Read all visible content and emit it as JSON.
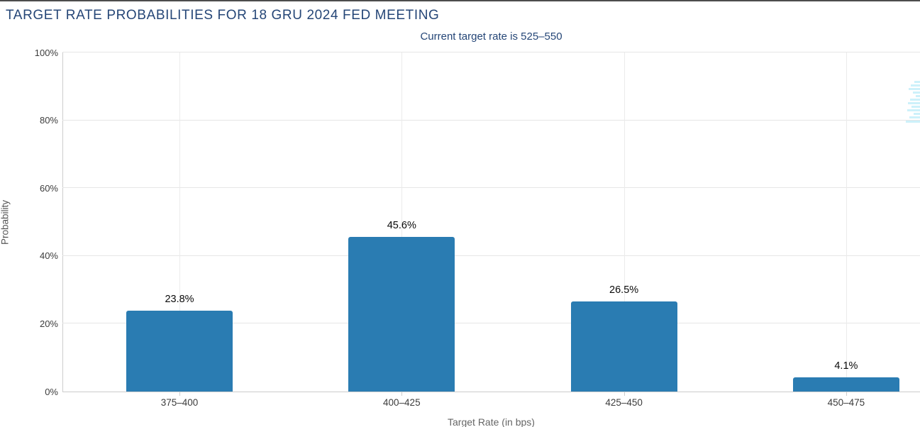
{
  "page": {
    "title": "TARGET RATE PROBABILITIES FOR 18 GRU 2024 FED MEETING",
    "subtitle": "Current target rate is 525–550"
  },
  "colors": {
    "bar": "#2a7cb2",
    "heading_text": "#254677",
    "gridline": "#e6e6e6",
    "axis_line": "#cccccc",
    "watermark": "#cdf1fa"
  },
  "chart_data": {
    "type": "bar",
    "title": "TARGET RATE PROBABILITIES FOR 18 GRU 2024 FED MEETING",
    "subtitle": "Current target rate is 525–550",
    "categories": [
      "375–400",
      "400–425",
      "425–450",
      "450–475"
    ],
    "values": [
      23.8,
      45.6,
      26.5,
      4.1
    ],
    "data_labels": [
      "23.8%",
      "45.6%",
      "26.5%",
      "4.1%"
    ],
    "xlabel": "Target Rate (in bps)",
    "ylabel": "Probability",
    "ylim": [
      0,
      100
    ],
    "ytick_values": [
      0,
      20,
      40,
      60,
      80,
      100
    ],
    "ytick_labels": [
      "0%",
      "20%",
      "40%",
      "60%",
      "80%",
      "100%"
    ],
    "grid": true,
    "legend": "none",
    "bar_color": "#2a7cb2"
  }
}
